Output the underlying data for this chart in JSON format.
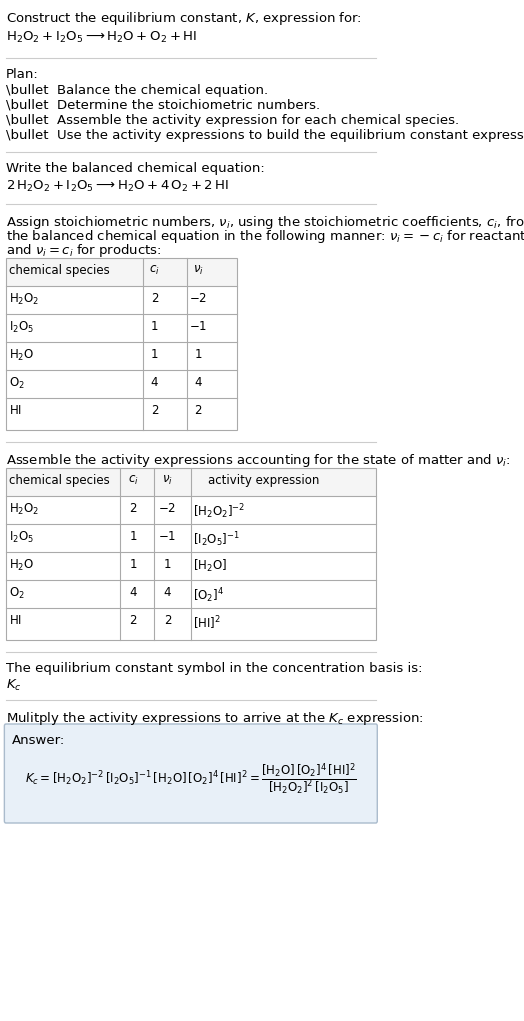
{
  "title_line1": "Construct the equilibrium constant, $K$, expression for:",
  "title_line2": "$\\mathrm{H_2O_2} + \\mathrm{I_2O_5} \\longrightarrow \\mathrm{H_2O} + \\mathrm{O_2} + \\mathrm{HI}$",
  "plan_header": "Plan:",
  "plan_items": [
    "\\bullet  Balance the chemical equation.",
    "\\bullet  Determine the stoichiometric numbers.",
    "\\bullet  Assemble the activity expression for each chemical species.",
    "\\bullet  Use the activity expressions to build the equilibrium constant expression."
  ],
  "balanced_header": "Write the balanced chemical equation:",
  "balanced_eq": "$2\\,\\mathrm{H_2O_2} + \\mathrm{I_2O_5} \\longrightarrow \\mathrm{H_2O} + 4\\,\\mathrm{O_2} + 2\\,\\mathrm{HI}$",
  "stoich_header": "Assign stoichiometric numbers, $\\nu_i$, using the stoichiometric coefficients, $c_i$, from the balanced chemical equation in the following manner: $\\nu_i = -c_i$ for reactants and $\\nu_i = c_i$ for products:",
  "table1_cols": [
    "chemical species",
    "$c_i$",
    "$\\nu_i$"
  ],
  "table1_rows": [
    [
      "$\\mathrm{H_2O_2}$",
      "2",
      "$-2$"
    ],
    [
      "$\\mathrm{I_2O_5}$",
      "1",
      "$-1$"
    ],
    [
      "$\\mathrm{H_2O}$",
      "1",
      "1"
    ],
    [
      "$\\mathrm{O_2}$",
      "4",
      "4"
    ],
    [
      "$\\mathrm{HI}$",
      "2",
      "2"
    ]
  ],
  "activity_header": "Assemble the activity expressions accounting for the state of matter and $\\nu_i$:",
  "table2_cols": [
    "chemical species",
    "$c_i$",
    "$\\nu_i$",
    "activity expression"
  ],
  "table2_rows": [
    [
      "$\\mathrm{H_2O_2}$",
      "2",
      "$-2$",
      "$[\\mathrm{H_2O_2}]^{-2}$"
    ],
    [
      "$\\mathrm{I_2O_5}$",
      "1",
      "$-1$",
      "$[\\mathrm{I_2O_5}]^{-1}$"
    ],
    [
      "$\\mathrm{H_2O}$",
      "1",
      "1",
      "$[\\mathrm{H_2O}]$"
    ],
    [
      "$\\mathrm{O_2}$",
      "4",
      "4",
      "$[\\mathrm{O_2}]^4$"
    ],
    [
      "$\\mathrm{HI}$",
      "2",
      "2",
      "$[\\mathrm{HI}]^2$"
    ]
  ],
  "kc_header": "The equilibrium constant symbol in the concentration basis is:",
  "kc_symbol": "$K_c$",
  "multiply_header": "Mulitply the activity expressions to arrive at the $K_c$ expression:",
  "answer_label": "Answer:",
  "answer_line1": "$K_c = [\\mathrm{H_2O_2}]^{-2}\\,[\\mathrm{I_2O_5}]^{-1}\\,[\\mathrm{H_2O}]\\,[\\mathrm{O_2}]^4\\,[\\mathrm{HI}]^2 = \\dfrac{[\\mathrm{H_2O}]\\,[\\mathrm{O_2}]^4\\,[\\mathrm{HI}]^2}{[\\mathrm{H_2O_2}]^2\\,[\\mathrm{I_2O_5}]}$",
  "bg_color": "#ffffff",
  "text_color": "#000000",
  "table_border_color": "#aaaaaa",
  "answer_bg_color": "#e8f0f8",
  "answer_border_color": "#aabbcc",
  "separator_color": "#cccccc",
  "font_size": 9.5,
  "small_font": 8.5
}
